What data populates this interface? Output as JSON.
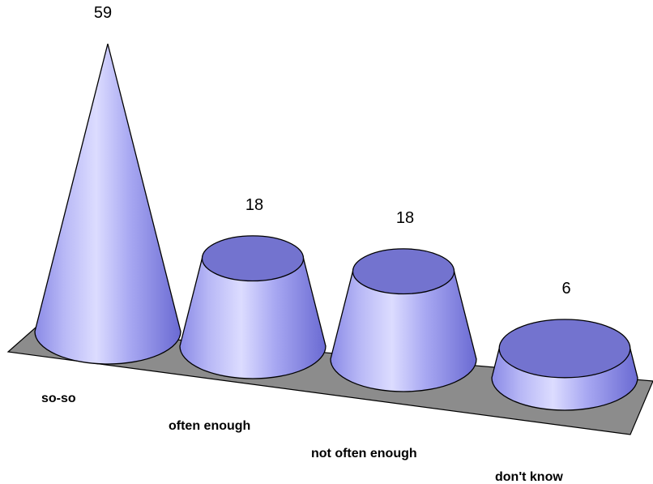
{
  "chart_data": {
    "type": "bar",
    "style": "3d-cone",
    "categories": [
      "so-so",
      "often enough",
      "not often enough",
      "don't know"
    ],
    "values": [
      59,
      18,
      18,
      6
    ],
    "data_labels": [
      "59",
      "18",
      "18",
      "6"
    ],
    "ylim": [
      0,
      59
    ],
    "title": "",
    "xlabel": "",
    "ylabel": "",
    "grid": false,
    "legend": "none",
    "colors": {
      "cone_light": "#dcdcff",
      "cone_mid": "#9a9af0",
      "cone_dark": "#6a6ad2",
      "cone_top": "#7373cf",
      "floor": "#8c8c8c",
      "outline": "#000000"
    }
  }
}
